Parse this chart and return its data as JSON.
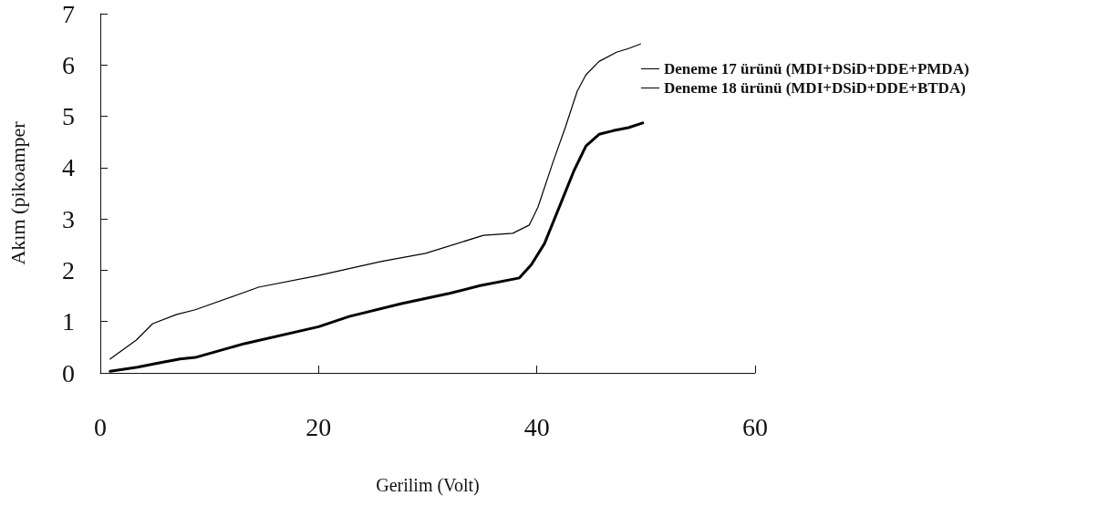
{
  "chart_data": {
    "type": "line",
    "xlabel": "Gerilim (Volt)",
    "ylabel": "Akım (pikoamper",
    "xlim": [
      0,
      60
    ],
    "xticks": [
      0,
      20,
      40,
      60
    ],
    "ylim": [
      0,
      7
    ],
    "yticks": [
      0,
      1,
      2,
      3,
      4,
      5,
      6,
      7
    ],
    "legend": "right",
    "marker": "none",
    "line_style": "solid",
    "series": [
      {
        "name": "Deneme 17 ürünü (MDI+DSiD+DDE+PMDA)",
        "color": "#000000",
        "x": [
          0.9,
          3.4,
          5.3,
          7.3,
          8.7,
          13.2,
          20,
          22.8,
          27.6,
          32,
          34.8,
          38.4,
          39.5,
          40.7,
          42.3,
          43.4,
          44.5,
          45.7,
          47,
          48.4,
          49.7
        ],
        "values": [
          0.03,
          0.11,
          0.19,
          0.27,
          0.3,
          0.57,
          0.9,
          1.1,
          1.35,
          1.55,
          1.7,
          1.85,
          2.11,
          2.52,
          3.36,
          3.94,
          4.42,
          4.65,
          4.72,
          4.78,
          4.87
        ]
      },
      {
        "name": "Deneme 18 ürünü (MDI+DSiD+DDE+BTDA)",
        "color": "#000000",
        "x": [
          0.9,
          3.3,
          4.8,
          7,
          8.7,
          14.5,
          20,
          25.7,
          29.8,
          35.1,
          37.8,
          39.3,
          40.1,
          41.5,
          42.6,
          43.7,
          44.5,
          45.7,
          47.3,
          48.4,
          49.5
        ],
        "values": [
          0.27,
          0.64,
          0.96,
          1.14,
          1.23,
          1.67,
          1.9,
          2.17,
          2.33,
          2.68,
          2.72,
          2.88,
          3.23,
          4.12,
          4.78,
          5.49,
          5.81,
          6.07,
          6.25,
          6.32,
          6.41
        ]
      }
    ]
  }
}
